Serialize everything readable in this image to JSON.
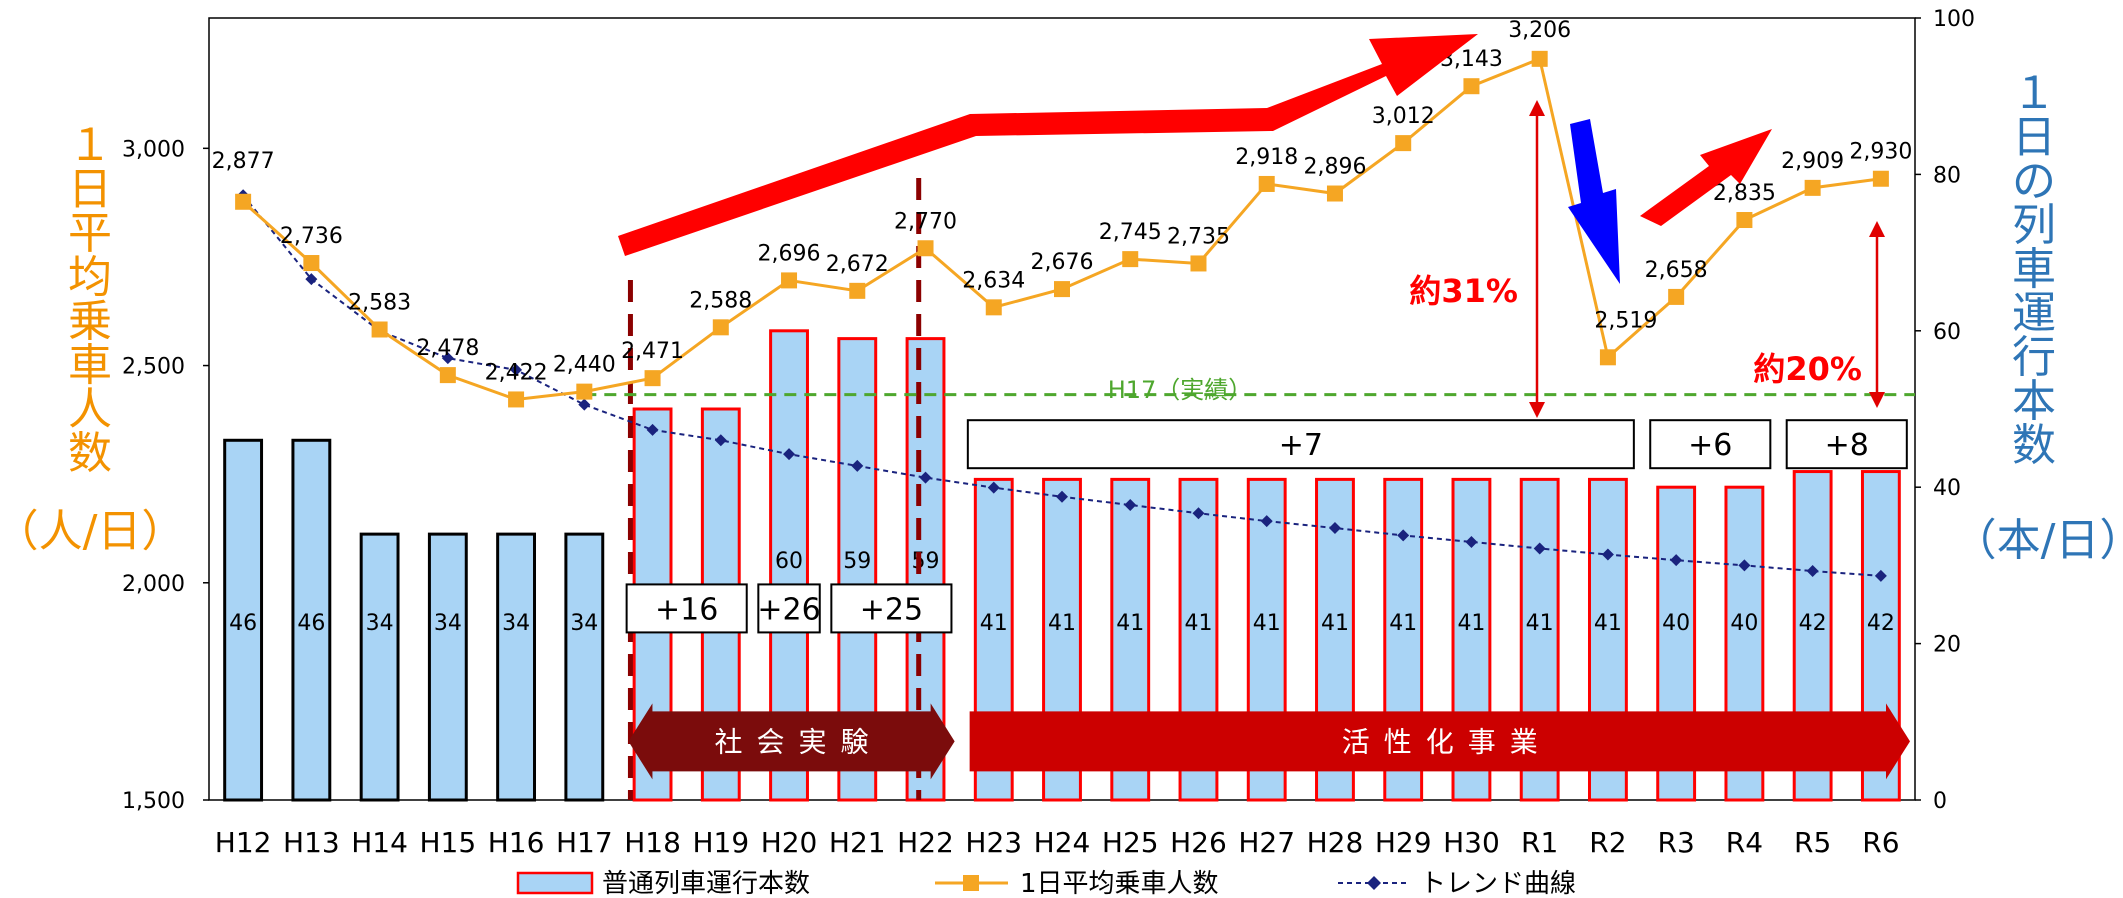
{
  "chart_data": {
    "type": "bar",
    "categories": [
      "H12",
      "H13",
      "H14",
      "H15",
      "H16",
      "H17",
      "H18",
      "H19",
      "H20",
      "H21",
      "H22",
      "H23",
      "H24",
      "H25",
      "H26",
      "H27",
      "H28",
      "H29",
      "H30",
      "R1",
      "R2",
      "R3",
      "R4",
      "R5",
      "R6"
    ],
    "series": [
      {
        "name": "普通列車運行本数",
        "type": "bar",
        "axis": "right",
        "values": [
          46,
          46,
          34,
          34,
          34,
          34,
          50,
          50,
          60,
          59,
          59,
          41,
          41,
          41,
          41,
          41,
          41,
          41,
          41,
          41,
          41,
          40,
          40,
          42,
          42
        ]
      },
      {
        "name": "1日平均乗車人数",
        "type": "line",
        "axis": "left",
        "values": [
          2877,
          2736,
          2583,
          2478,
          2422,
          2440,
          2471,
          2588,
          2696,
          2672,
          2770,
          2634,
          2676,
          2745,
          2735,
          2918,
          2896,
          3012,
          3143,
          3206,
          2519,
          2658,
          2835,
          2909,
          2930
        ],
        "labels": [
          "2,877",
          "2,736",
          "2,583",
          "2,478",
          "2,422",
          "2,440",
          "2,471",
          "2,588",
          "2,696",
          "2,672",
          "2,770",
          "2,634",
          "2,676",
          "2,745",
          "2,735",
          "2,918",
          "2,896",
          "3,012",
          "3,143",
          "3,206",
          "2,519",
          "2,658",
          "2,835",
          "2,909",
          "2,930"
        ]
      },
      {
        "name": "トレンド曲線",
        "type": "line",
        "axis": "left",
        "values": [
          2892,
          2699,
          2580,
          2517,
          2490,
          2410,
          2352,
          2328,
          2296,
          2269,
          2242,
          2219,
          2198,
          2179,
          2160,
          2142,
          2126,
          2109,
          2094,
          2079,
          2065,
          2052,
          2040,
          2027,
          2016
        ]
      }
    ],
    "left_axis": {
      "label": "１日平均乗車人数（人/日）",
      "lines": [
        "１",
        "日",
        "平",
        "均",
        "乗",
        "車",
        "人",
        "数",
        "（人/日）"
      ],
      "ylim": [
        1500,
        3300
      ],
      "ticks": [
        1500,
        2000,
        2500,
        3000
      ],
      "tick_labels": [
        "1,500",
        "2,000",
        "2,500",
        "3,000"
      ]
    },
    "right_axis": {
      "label": "１日の列車運行本数（本/日）",
      "lines": [
        "１",
        "日",
        "の",
        "列",
        "車",
        "運",
        "行",
        "本",
        "数",
        "（本/日）"
      ],
      "ylim": [
        0,
        100
      ],
      "ticks": [
        0,
        20,
        40,
        60,
        80,
        100
      ],
      "tick_labels": [
        "0",
        "20",
        "40",
        "60",
        "80",
        "100"
      ]
    },
    "reference_line": {
      "label": "H17（実績）",
      "value": 2440,
      "color": "#4ea72e"
    },
    "increase_boxes": [
      {
        "label": "+16",
        "from": "H18",
        "to": "H19",
        "level": 24.5
      },
      {
        "label": "+26",
        "from": "H20",
        "to": "H20",
        "level": 24.5
      },
      {
        "label": "+25",
        "from": "H21",
        "to": "H22",
        "level": 24.5
      },
      {
        "label": "+7",
        "from": "H23",
        "to": "R2",
        "level": 45.5
      },
      {
        "label": "+6",
        "from": "R3",
        "to": "R4",
        "level": 45.5
      },
      {
        "label": "+8",
        "from": "R5",
        "to": "R6",
        "level": 45.5
      }
    ],
    "phases": [
      {
        "label": "社会実験",
        "from": "H18",
        "to": "H22",
        "color": "#7b0c0c"
      },
      {
        "label": "活性化事業",
        "from": "H23",
        "to": "R6",
        "color": "#cc0000"
      }
    ],
    "annotations": [
      {
        "text": "約31%",
        "color": "#ff0000"
      },
      {
        "text": "約20%",
        "color": "#ff0000"
      }
    ],
    "legend": {
      "position": "bottom",
      "items": [
        "普通列車運行本数",
        "1日平均乗車人数",
        "トレンド曲線"
      ]
    },
    "colors": {
      "bar_fill": "#a9d4f5",
      "bar_edge_normal": "#000000",
      "bar_edge_highlight": "#ff0000",
      "line": "#f5a623",
      "trend": "#1a237e",
      "arrow_up": "#ff0000",
      "arrow_down": "#0000ff",
      "dashed_marker": "#8b0000"
    }
  }
}
